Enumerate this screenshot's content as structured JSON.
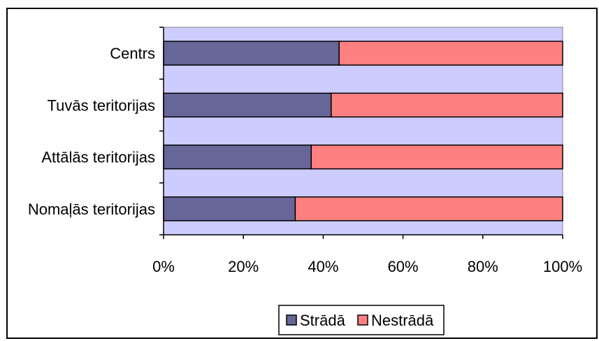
{
  "chart_data": {
    "type": "bar",
    "orientation": "horizontal",
    "stacked": "percent",
    "categories": [
      "Centrs",
      "Tuvās teritorijas",
      "Attālās teritorijas",
      "Nomaļās teritorijas"
    ],
    "series": [
      {
        "name": "Strādā",
        "values": [
          44,
          42,
          37,
          33
        ],
        "color": "#666699"
      },
      {
        "name": "Nestrādā",
        "values": [
          56,
          58,
          63,
          67
        ],
        "color": "#FF8080"
      }
    ],
    "xticks": [
      "0%",
      "20%",
      "40%",
      "60%",
      "80%",
      "100%"
    ],
    "xlim": [
      0,
      100
    ],
    "plot_background": "#CCCCFF",
    "grid": false,
    "legend": "bottom-center"
  }
}
